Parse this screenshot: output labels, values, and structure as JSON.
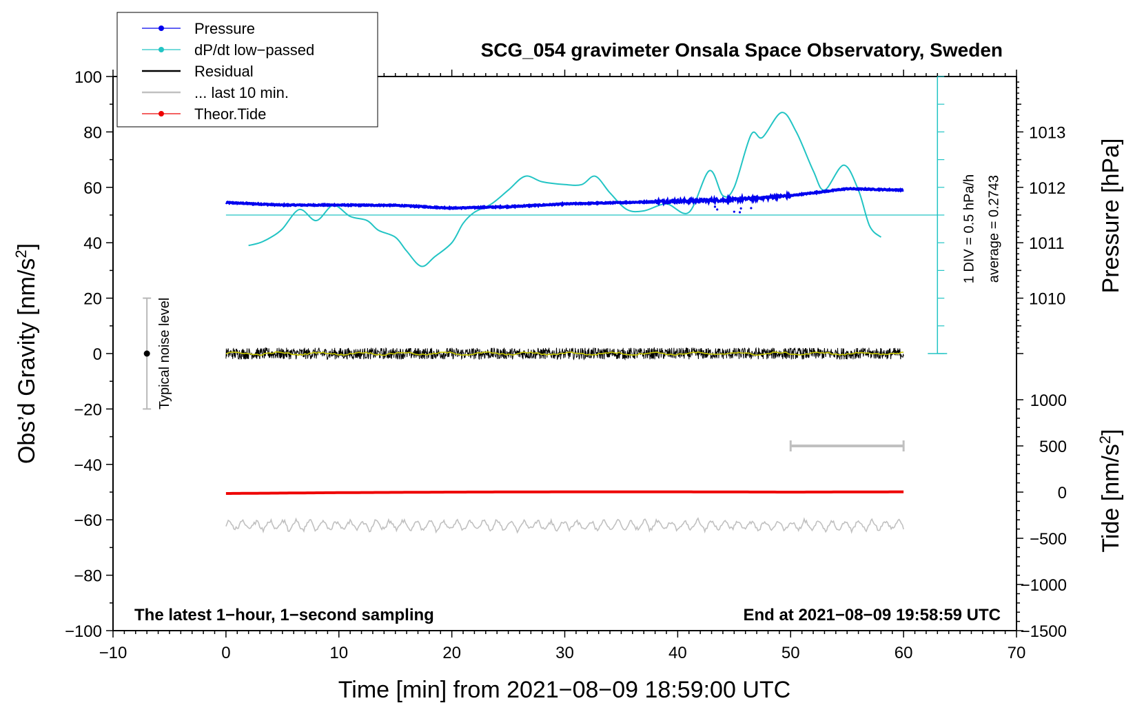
{
  "chart_data": {
    "type": "line",
    "title": "SCG_054 gravimeter Onsala Space Observatory, Sweden",
    "xlabel": "Time [min] from 2021−08−09 18:59:00 UTC",
    "ylabel_left": "Obs’d Gravity [nm/s",
    "ylabel_left_sup": "2",
    "ylabel_left_end": "]",
    "ylabel_right_pressure": "Pressure [hPa]",
    "ylabel_right_tide": "Tide [nm/s",
    "ylabel_right_tide_sup": "2",
    "ylabel_right_tide_end": "]",
    "xlim": [
      -10,
      70
    ],
    "ylim": [
      -100,
      100
    ],
    "x_ticks": [
      -10,
      0,
      10,
      20,
      30,
      40,
      50,
      60,
      70
    ],
    "x_tick_labels": [
      "−10",
      "0",
      "10",
      "20",
      "30",
      "40",
      "50",
      "60",
      "70"
    ],
    "y_ticks": [
      -100,
      -80,
      -60,
      -40,
      -20,
      0,
      20,
      40,
      60,
      80,
      100
    ],
    "y_tick_labels": [
      "−100",
      "−80",
      "−60",
      "−40",
      "−20",
      "0",
      "20",
      "40",
      "60",
      "80",
      "100"
    ],
    "pressure_axis": {
      "ticks": [
        1010,
        1011,
        1012,
        1013
      ],
      "tick_labels": [
        "1010",
        "1011",
        "1012",
        "1013"
      ],
      "gravity_at_1010": 20,
      "gravity_per_hPa": 20
    },
    "tide_axis": {
      "ticks": [
        -1500,
        -1000,
        -500,
        0,
        500,
        1000
      ],
      "tick_labels": [
        "−1500",
        "−1000",
        "−500",
        "0",
        "500",
        "1000"
      ],
      "gravity_at_zero": -50,
      "gravity_per_500": 16.67
    },
    "legend": [
      {
        "label": "Pressure",
        "color": "#0000ee",
        "marker": true
      },
      {
        "label": "dP/dt low−passed",
        "color": "#22c4c4",
        "marker": true
      },
      {
        "label": "Residual",
        "color": "#000000",
        "marker": false
      },
      {
        "label": "... last 10 min.",
        "color": "#c0c0c0",
        "marker": false
      },
      {
        "label": "Theor.Tide",
        "color": "#ee0000",
        "marker": true
      }
    ],
    "series": [
      {
        "name": "Pressure",
        "color": "#0000ee",
        "x": [
          0,
          5,
          10,
          15,
          20,
          25,
          30,
          35,
          40,
          45,
          50,
          55,
          60
        ],
        "values": [
          54.5,
          53.6,
          53.6,
          53.5,
          52.5,
          53.0,
          54.0,
          54.5,
          55.0,
          55.5,
          57.0,
          59.5,
          59.0
        ]
      },
      {
        "name": "dP/dt low−passed",
        "color": "#22c4c4",
        "x": [
          2,
          3,
          4,
          5,
          6.5,
          8,
          9.5,
          11,
          12.5,
          13.5,
          15,
          16,
          17.3,
          18.5,
          20,
          21,
          22,
          23.5,
          25,
          26.5,
          28,
          30,
          31.5,
          32.7,
          34,
          35.5,
          37,
          39,
          41,
          42.8,
          44,
          45,
          46.5,
          47.5,
          49.2,
          50.5,
          52,
          53,
          54.7,
          56,
          57,
          58
        ],
        "values": [
          39,
          40,
          42,
          45,
          52,
          48,
          53.5,
          49.5,
          48,
          44.5,
          42,
          37,
          31.5,
          35,
          40,
          47,
          51,
          54,
          59,
          64,
          62,
          61,
          61,
          64,
          58,
          52,
          51.5,
          54,
          51,
          66,
          57,
          60,
          79,
          78,
          87,
          80,
          66,
          59,
          68,
          59,
          46,
          42
        ]
      },
      {
        "name": "Residual",
        "color": "#000000",
        "x": [
          0,
          60
        ],
        "values": [
          0,
          0
        ]
      },
      {
        "name": "... last 10 min.",
        "color": "#c0c0c0",
        "x": [
          0,
          60
        ],
        "values": [
          -62,
          -62
        ]
      },
      {
        "name": "Theor.Tide",
        "color": "#ee0000",
        "x": [
          0,
          10,
          20,
          30,
          40,
          50,
          60
        ],
        "values": [
          -50.5,
          -50.2,
          -50.0,
          -49.9,
          -49.9,
          -50.0,
          -49.9
        ]
      }
    ],
    "dpdt_baseline": 50,
    "noise_bar": {
      "x": -7,
      "low": -20,
      "high": 20,
      "label": "Typical noise level"
    },
    "last10_bar": {
      "x_start": 50,
      "x_end": 60
    },
    "scale_bar_labels": [
      "1 DIV = 0.5 hPa/h",
      "average = 0.2743"
    ],
    "annotation_left": "The latest 1−hour, 1−second sampling",
    "annotation_right": "End at 2021−08−09 19:58:59 UTC"
  }
}
